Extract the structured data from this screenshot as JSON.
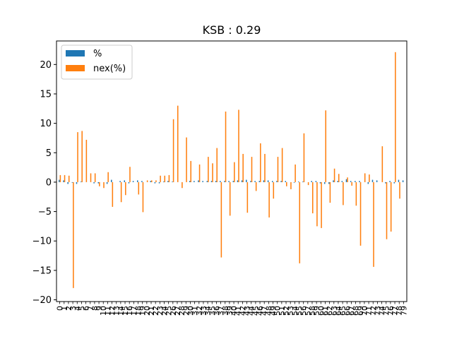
{
  "chart_data": {
    "type": "bar",
    "title": "KSB : 0.29",
    "xlabel": "",
    "ylabel": "",
    "ylim": [
      -20.3,
      24
    ],
    "yticks": [
      -20,
      -15,
      -10,
      -5,
      0,
      5,
      10,
      15,
      20
    ],
    "legend_position": "top-left",
    "categories": [
      "0",
      "1",
      "2",
      "3",
      "4",
      "5",
      "6",
      "7",
      "8",
      "9",
      "10",
      "11",
      "12",
      "13",
      "14",
      "15",
      "16",
      "17",
      "18",
      "19",
      "20",
      "21",
      "22",
      "23",
      "24",
      "25",
      "26",
      "27",
      "28",
      "29",
      "30",
      "31",
      "32",
      "33",
      "34",
      "35",
      "36",
      "37",
      "38",
      "39",
      "40",
      "41",
      "42",
      "43",
      "44",
      "45",
      "46",
      "47",
      "48",
      "49",
      "50",
      "51",
      "52",
      "53",
      "54",
      "55",
      "56",
      "57",
      "58",
      "59",
      "60",
      "61",
      "62",
      "63",
      "64",
      "65",
      "66",
      "67",
      "68",
      "69",
      "70",
      "71",
      "72",
      "73",
      "74",
      "75",
      "76",
      "77",
      "78",
      "79"
    ],
    "series": [
      {
        "name": "%",
        "color": "#1f77b4",
        "values": [
          0.4,
          0.3,
          -0.3,
          -0.1,
          -0.3,
          0.1,
          0.0,
          0.0,
          -0.2,
          -0.2,
          0.0,
          -0.3,
          0.4,
          0.0,
          0.2,
          0.3,
          -0.2,
          0.2,
          0.3,
          0.2,
          0.0,
          0.2,
          -0.2,
          -0.2,
          0.1,
          0.2,
          0.1,
          0.0,
          0.0,
          0.0,
          0.2,
          0.2,
          0.3,
          0.2,
          0.2,
          0.2,
          0.2,
          0.2,
          0.2,
          0.2,
          0.2,
          0.3,
          0.3,
          0.4,
          0.2,
          0.2,
          0.2,
          0.3,
          0.3,
          0.2,
          0.2,
          0.2,
          0.2,
          0.0,
          -0.1,
          0.1,
          0.1,
          0.0,
          0.2,
          0.2,
          -0.2,
          -0.3,
          -0.3,
          0.3,
          0.2,
          0.2,
          0.5,
          0.2,
          0.2,
          0.2,
          0.0,
          -0.3,
          0.4,
          0.3,
          0.0,
          -0.2,
          0.2,
          -0.2,
          0.4,
          0.3
        ]
      },
      {
        "name": "nex(%)",
        "color": "#ff7f0e",
        "values": [
          1.2,
          1.2,
          1.1,
          -18.0,
          8.5,
          8.7,
          7.2,
          1.5,
          1.5,
          -0.7,
          -1.0,
          1.7,
          -4.2,
          0.0,
          -3.4,
          -2.2,
          2.6,
          0.0,
          -2.1,
          -5.1,
          0.3,
          0.3,
          0.3,
          1.1,
          1.1,
          1.2,
          10.7,
          13.0,
          -1.0,
          7.6,
          3.6,
          0.0,
          3.0,
          0.0,
          4.3,
          3.2,
          5.8,
          -12.8,
          12.0,
          -5.7,
          3.4,
          12.3,
          4.8,
          -5.2,
          4.3,
          -1.5,
          6.6,
          4.8,
          -6.0,
          -2.8,
          4.3,
          5.8,
          -0.7,
          -1.2,
          3.0,
          -13.8,
          8.3,
          -0.5,
          -5.3,
          -7.5,
          -7.8,
          12.2,
          -3.5,
          2.3,
          1.4,
          -3.9,
          0.8,
          -0.6,
          -4.0,
          -10.8,
          1.5,
          1.3,
          -14.4,
          0.0,
          6.1,
          -9.7,
          -8.4,
          22.1,
          -2.8,
          0.0
        ]
      }
    ]
  },
  "legend": {
    "items": [
      {
        "label": "%",
        "color": "#1f77b4"
      },
      {
        "label": "nex(%)",
        "color": "#ff7f0e"
      }
    ]
  }
}
